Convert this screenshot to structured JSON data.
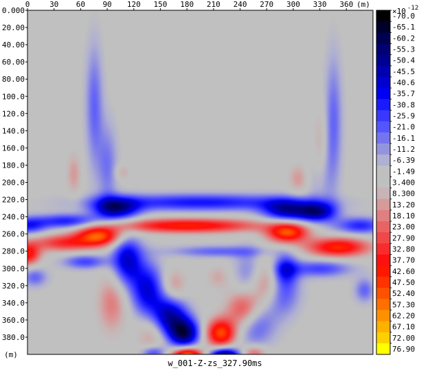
{
  "chart_data": {
    "type": "heatmap",
    "title": "w_001-Z-zs_327.90ms",
    "x_unit_label": "(m)",
    "y_unit_label": "(m)",
    "xlim": [
      0,
      390
    ],
    "ylim": [
      0,
      400
    ],
    "x_ticks": [
      "0",
      "30",
      "60",
      "90",
      "120",
      "150",
      "180",
      "210",
      "240",
      "270",
      "300",
      "330",
      "360"
    ],
    "y_ticks": [
      "0.000",
      "20.00",
      "40.00",
      "60.00",
      "80.00",
      "100.0",
      "120.0",
      "140.0",
      "160.0",
      "180.0",
      "200.0",
      "220.0",
      "240.0",
      "260.0",
      "280.0",
      "300.0",
      "320.0",
      "340.0",
      "360.0",
      "380.0"
    ],
    "colorbar": {
      "multiplier_label": "×10",
      "multiplier_exponent": "-12",
      "labels": [
        "-70.0",
        "-65.1",
        "-60.2",
        "-55.3",
        "-50.4",
        "-45.5",
        "-40.6",
        "-35.7",
        "-30.8",
        "-25.9",
        "-21.0",
        "-16.1",
        "-11.2",
        "-6.39",
        "-1.49",
        "3.400",
        "8.300",
        "13.20",
        "18.10",
        "23.00",
        "27.90",
        "32.80",
        "37.70",
        "42.60",
        "47.50",
        "52.40",
        "57.30",
        "62.20",
        "67.10",
        "72.00",
        "76.90"
      ],
      "colors": [
        "#000000",
        "#00002a",
        "#000050",
        "#000070",
        "#000090",
        "#0000b0",
        "#0000d0",
        "#0000f0",
        "#1a1aff",
        "#3838ff",
        "#5555ff",
        "#7474ee",
        "#9494dd",
        "#b0b0d2",
        "#c0c0c0",
        "#c0c0c0",
        "#c8b4b4",
        "#d69a9a",
        "#e07f7f",
        "#e86464",
        "#f04848",
        "#f82c2c",
        "#ff1010",
        "#ff1800",
        "#ff3300",
        "#ff5200",
        "#ff7000",
        "#ff9000",
        "#ffb000",
        "#ffd000",
        "#ffff00"
      ]
    },
    "features": [
      {
        "type": "blue",
        "x": 0,
        "y": 250,
        "sx": 15,
        "sy": 7,
        "amp": 0.55
      },
      {
        "type": "blue",
        "x": 45,
        "y": 245,
        "sx": 25,
        "sy": 6,
        "amp": 0.6
      },
      {
        "type": "blue",
        "x": 100,
        "y": 230,
        "sx": 18,
        "sy": 9,
        "amp": 0.85
      },
      {
        "type": "blue",
        "x": 195,
        "y": 223,
        "sx": 80,
        "sy": 7,
        "amp": 0.6
      },
      {
        "type": "blue",
        "x": 290,
        "y": 232,
        "sx": 18,
        "sy": 9,
        "amp": 0.75
      },
      {
        "type": "blue",
        "x": 325,
        "y": 234,
        "sx": 16,
        "sy": 8,
        "amp": 0.85
      },
      {
        "type": "blue",
        "x": 375,
        "y": 250,
        "sx": 20,
        "sy": 7,
        "amp": 0.55
      },
      {
        "type": "red",
        "x": 0,
        "y": 283,
        "sx": 10,
        "sy": 9,
        "amp": 0.75
      },
      {
        "type": "red",
        "x": 40,
        "y": 270,
        "sx": 25,
        "sy": 7,
        "amp": 0.6
      },
      {
        "type": "red",
        "x": 80,
        "y": 262,
        "sx": 18,
        "sy": 8,
        "amp": 0.95
      },
      {
        "type": "red",
        "x": 180,
        "y": 250,
        "sx": 60,
        "sy": 6,
        "amp": 0.8
      },
      {
        "type": "red",
        "x": 293,
        "y": 258,
        "sx": 16,
        "sy": 8,
        "amp": 0.95
      },
      {
        "type": "red",
        "x": 350,
        "y": 275,
        "sx": 25,
        "sy": 8,
        "amp": 0.85
      },
      {
        "type": "blue",
        "x": 330,
        "y": 300,
        "sx": 25,
        "sy": 7,
        "amp": 0.45
      },
      {
        "type": "blue",
        "x": 65,
        "y": 292,
        "sx": 18,
        "sy": 6,
        "amp": 0.45
      },
      {
        "type": "blue",
        "x": 8,
        "y": 310,
        "sx": 10,
        "sy": 8,
        "amp": 0.35
      },
      {
        "type": "blue",
        "x": 380,
        "y": 325,
        "sx": 8,
        "sy": 10,
        "amp": 0.35
      },
      {
        "type": "blue",
        "x": 215,
        "y": 280,
        "sx": 40,
        "sy": 5,
        "amp": 0.35
      },
      {
        "type": "blue",
        "x": 250,
        "y": 305,
        "sx": 12,
        "sy": 20,
        "amp": 0.3
      },
      {
        "type": "red",
        "x": 215,
        "y": 310,
        "sx": 10,
        "sy": 10,
        "amp": 0.2
      },
      {
        "type": "red",
        "x": 165,
        "y": 320,
        "sx": 10,
        "sy": 14,
        "amp": 0.3
      },
      {
        "type": "blue",
        "x": 112,
        "y": 290,
        "sx": 12,
        "sy": 20,
        "amp": 0.75
      },
      {
        "type": "blue",
        "x": 135,
        "y": 325,
        "sx": 13,
        "sy": 22,
        "amp": 0.7
      },
      {
        "type": "blue",
        "x": 160,
        "y": 355,
        "sx": 14,
        "sy": 16,
        "amp": 0.85
      },
      {
        "type": "blue",
        "x": 177,
        "y": 375,
        "sx": 12,
        "sy": 12,
        "amp": 1.0
      },
      {
        "type": "red",
        "x": 218,
        "y": 375,
        "sx": 12,
        "sy": 12,
        "amp": 0.95
      },
      {
        "type": "red",
        "x": 245,
        "y": 348,
        "sx": 14,
        "sy": 16,
        "amp": 0.75
      },
      {
        "type": "red",
        "x": 272,
        "y": 318,
        "sx": 14,
        "sy": 20,
        "amp": 0.6
      },
      {
        "type": "blue",
        "x": 255,
        "y": 360,
        "sx": 16,
        "sy": 20,
        "amp": 0.55
      },
      {
        "type": "blue",
        "x": 285,
        "y": 325,
        "sx": 14,
        "sy": 20,
        "amp": 0.6
      },
      {
        "type": "blue",
        "x": 290,
        "y": 300,
        "sx": 10,
        "sy": 12,
        "amp": 0.55
      },
      {
        "type": "red",
        "x": 95,
        "y": 340,
        "sx": 12,
        "sy": 25,
        "amp": 0.35
      },
      {
        "type": "red",
        "x": 140,
        "y": 375,
        "sx": 12,
        "sy": 18,
        "amp": 0.3
      },
      {
        "type": "red",
        "x": 180,
        "y": 402,
        "sx": 12,
        "sy": 7,
        "amp": 1.3
      },
      {
        "type": "blue",
        "x": 222,
        "y": 402,
        "sx": 12,
        "sy": 7,
        "amp": 1.2
      },
      {
        "type": "blue",
        "x": 142,
        "y": 398,
        "sx": 10,
        "sy": 6,
        "amp": 0.5
      },
      {
        "type": "red",
        "x": 255,
        "y": 398,
        "sx": 10,
        "sy": 6,
        "amp": 0.45
      },
      {
        "type": "blue",
        "x": 75,
        "y": 110,
        "sx": 7,
        "sy": 50,
        "amp": 0.35
      },
      {
        "type": "blue",
        "x": 90,
        "y": 180,
        "sx": 8,
        "sy": 35,
        "amp": 0.3
      },
      {
        "type": "blue",
        "x": 345,
        "y": 130,
        "sx": 7,
        "sy": 55,
        "amp": 0.35
      },
      {
        "type": "blue",
        "x": 330,
        "y": 195,
        "sx": 8,
        "sy": 30,
        "amp": 0.3
      },
      {
        "type": "red",
        "x": 52,
        "y": 190,
        "sx": 6,
        "sy": 18,
        "amp": 0.25
      },
      {
        "type": "red",
        "x": 330,
        "y": 170,
        "sx": 6,
        "sy": 35,
        "amp": 0.3
      },
      {
        "type": "red",
        "x": 305,
        "y": 195,
        "sx": 8,
        "sy": 12,
        "amp": 0.25
      },
      {
        "type": "red",
        "x": 107,
        "y": 188,
        "sx": 6,
        "sy": 6,
        "amp": 0.2
      }
    ]
  }
}
